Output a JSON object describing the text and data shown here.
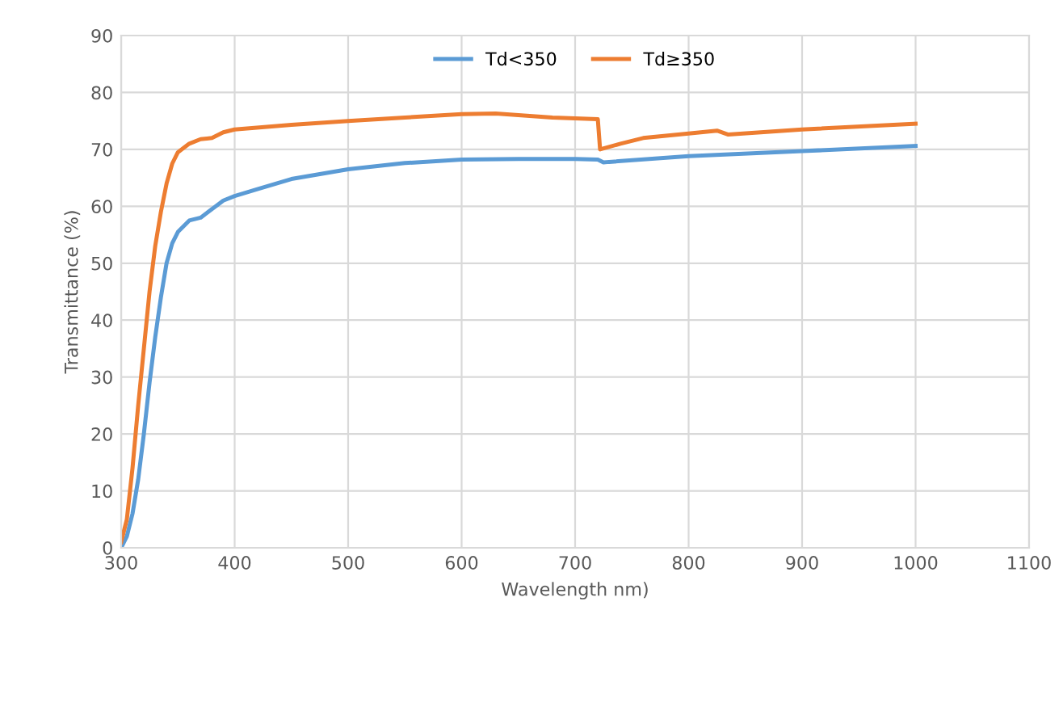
{
  "chart_data": {
    "type": "line",
    "xlabel": "Wavelength nm)",
    "ylabel": "Transmittance (%)",
    "xlim": [
      300,
      1100
    ],
    "xticks": [
      300,
      400,
      500,
      600,
      700,
      800,
      900,
      1000,
      1100
    ],
    "ylim": [
      0,
      90
    ],
    "yticks": [
      0,
      10,
      20,
      30,
      40,
      50,
      60,
      70,
      80,
      90
    ],
    "grid": true,
    "legend": "top",
    "series": [
      {
        "name": "Td<350",
        "color": "#5b9bd5",
        "x": [
          300,
          305,
          310,
          315,
          320,
          325,
          330,
          335,
          340,
          345,
          350,
          360,
          370,
          380,
          390,
          400,
          420,
          450,
          500,
          550,
          600,
          650,
          700,
          720,
          725,
          730,
          800,
          900,
          1000
        ],
        "values": [
          0,
          2,
          6,
          12,
          20,
          29,
          37,
          44,
          50,
          53.5,
          55.5,
          57.5,
          58,
          59.5,
          61,
          61.8,
          63,
          64.8,
          66.5,
          67.6,
          68.2,
          68.3,
          68.3,
          68.2,
          67.7,
          67.8,
          68.8,
          69.7,
          70.6
        ]
      },
      {
        "name": "Td≥350",
        "color": "#ed7d31",
        "x": [
          300,
          305,
          310,
          315,
          320,
          325,
          330,
          335,
          340,
          345,
          350,
          360,
          370,
          380,
          390,
          400,
          450,
          500,
          550,
          600,
          630,
          680,
          720,
          722,
          740,
          760,
          800,
          825,
          835,
          900,
          1000
        ],
        "values": [
          1,
          5,
          14,
          25,
          35,
          45,
          53,
          59,
          64,
          67.5,
          69.5,
          71,
          71.8,
          72,
          73,
          73.5,
          74.3,
          75,
          75.6,
          76.2,
          76.3,
          75.6,
          75.3,
          70,
          71,
          72,
          72.8,
          73.3,
          72.6,
          73.5,
          74.5
        ]
      }
    ]
  }
}
